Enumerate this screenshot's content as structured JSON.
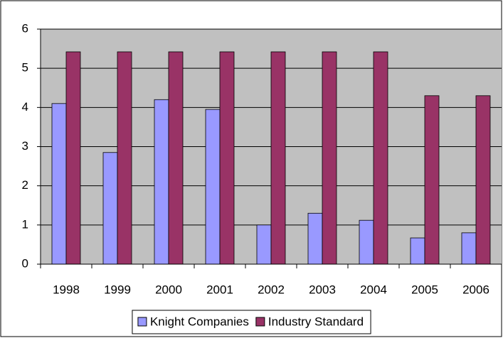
{
  "chart_data": {
    "type": "bar",
    "categories": [
      "1998",
      "1999",
      "2000",
      "2001",
      "2002",
      "2003",
      "2004",
      "2005",
      "2006"
    ],
    "series": [
      {
        "name": "Knight Companies",
        "color": "#9999ff",
        "values": [
          4.1,
          2.85,
          4.2,
          3.95,
          1.0,
          1.3,
          1.12,
          0.67,
          0.8
        ]
      },
      {
        "name": "Industry Standard",
        "color": "#993366",
        "values": [
          5.42,
          5.42,
          5.42,
          5.42,
          5.42,
          5.42,
          5.42,
          4.3,
          4.3
        ]
      }
    ],
    "ylim": [
      0,
      6
    ],
    "yticks": [
      0,
      1,
      2,
      3,
      4,
      5,
      6
    ],
    "grid": true,
    "legend": "bottom"
  }
}
